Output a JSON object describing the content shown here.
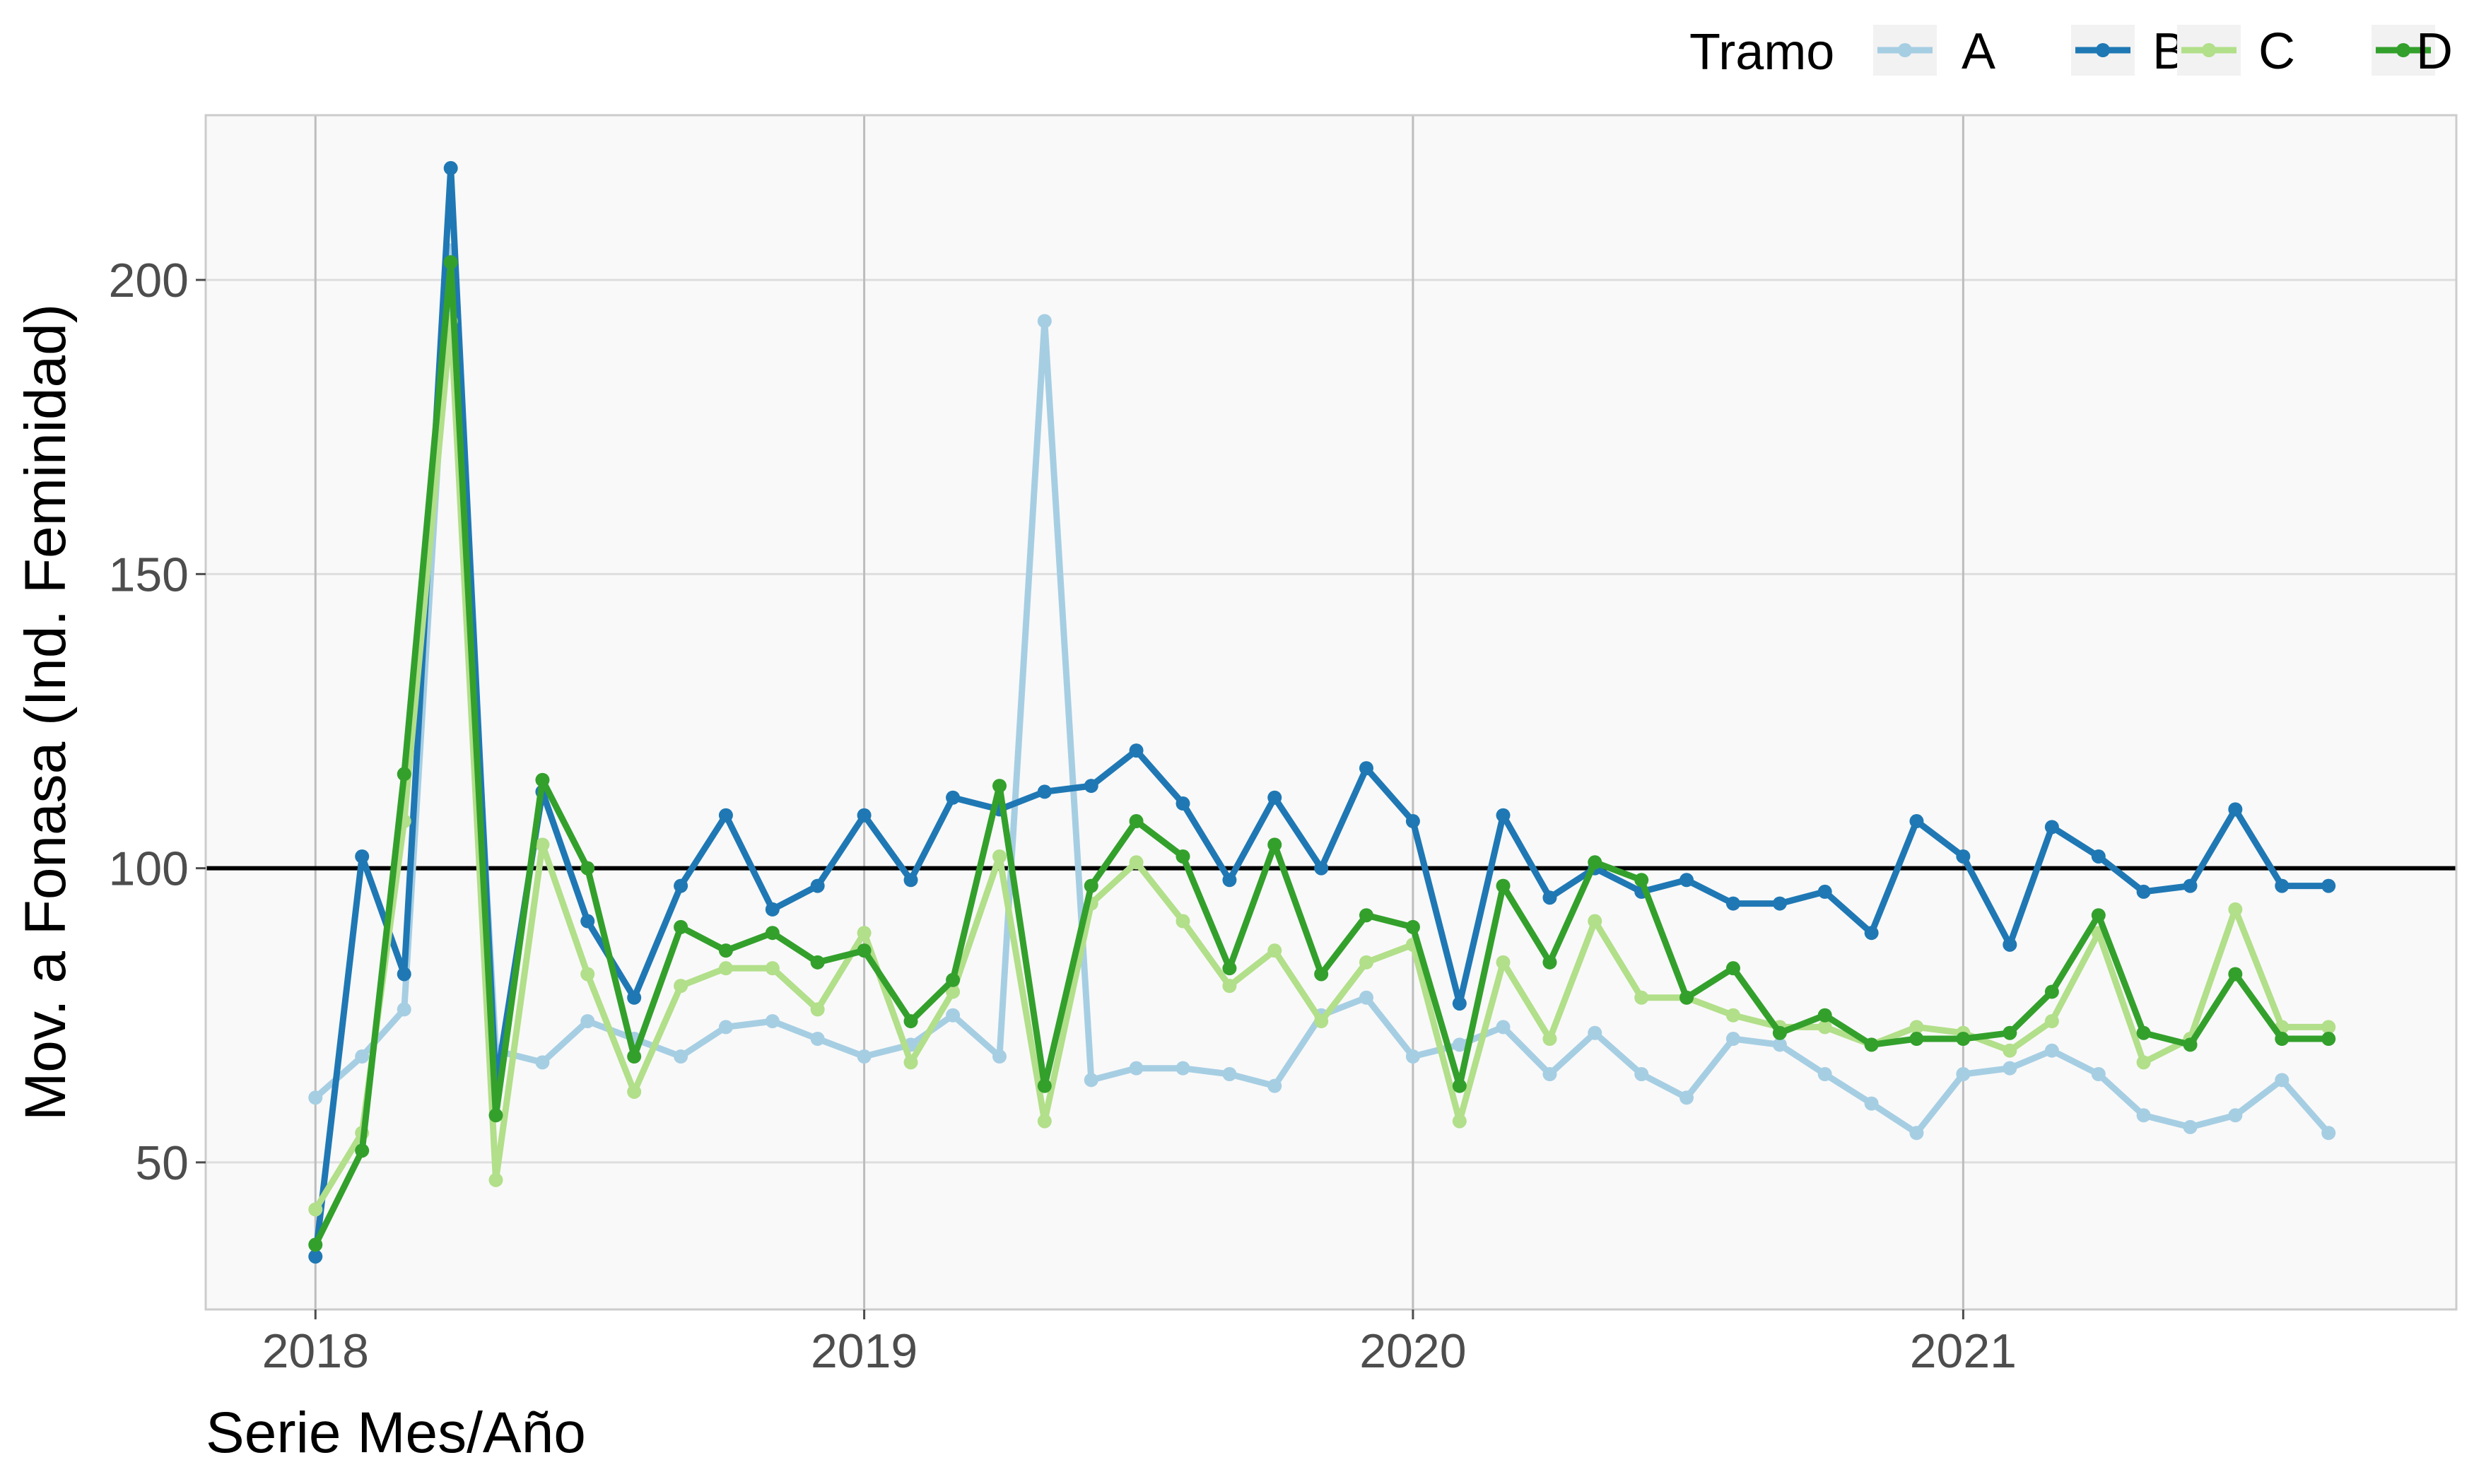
{
  "chart_data": {
    "type": "line",
    "xlabel": "Serie Mes/Año",
    "ylabel": "Mov. a Fonasa (Ind. Feminidad)",
    "xlim": [
      "2017-10-20",
      "2021-11-25"
    ],
    "ylim": [
      25,
      228
    ],
    "x_ticks": [
      {
        "date": "2018-01-01",
        "label": "2018"
      },
      {
        "date": "2019-01-01",
        "label": "2019"
      },
      {
        "date": "2020-01-01",
        "label": "2020"
      },
      {
        "date": "2021-01-01",
        "label": "2021"
      }
    ],
    "y_ticks": [
      50,
      100,
      150,
      200
    ],
    "reference_line": 100,
    "grid": true,
    "legend": {
      "title": "Tramo",
      "position": "top-right"
    },
    "x": [
      "2018-01",
      "2018-02",
      "2018-03",
      "2018-04",
      "2018-05",
      "2018-06",
      "2018-07",
      "2018-08",
      "2018-09",
      "2018-10",
      "2018-11",
      "2018-12",
      "2019-01",
      "2019-02",
      "2019-03",
      "2019-04",
      "2019-05",
      "2019-06",
      "2019-07",
      "2019-08",
      "2019-09",
      "2019-10",
      "2019-11",
      "2019-12",
      "2020-01",
      "2020-02",
      "2020-03",
      "2020-04",
      "2020-05",
      "2020-06",
      "2020-07",
      "2020-08",
      "2020-09",
      "2020-10",
      "2020-11",
      "2020-12",
      "2021-01",
      "2021-02",
      "2021-03",
      "2021-04",
      "2021-05",
      "2021-06",
      "2021-07",
      "2021-08",
      "2021-09"
    ],
    "series": [
      {
        "name": "A",
        "color": "#a6cee3",
        "values": [
          61,
          68,
          76,
          205,
          69,
          67,
          74,
          71,
          68,
          73,
          74,
          71,
          68,
          70,
          75,
          68,
          193,
          64,
          66,
          66,
          65,
          63,
          75,
          78,
          68,
          70,
          73,
          65,
          72,
          65,
          61,
          71,
          70,
          65,
          60,
          55,
          65,
          66,
          69,
          65,
          58,
          56,
          58,
          64,
          55
        ]
      },
      {
        "name": "B",
        "color": "#1f78b4",
        "values": [
          34,
          102,
          82,
          219,
          63,
          113,
          91,
          78,
          97,
          109,
          93,
          97,
          109,
          98,
          112,
          110,
          113,
          114,
          120,
          111,
          98,
          112,
          100,
          117,
          108,
          77,
          109,
          95,
          100,
          96,
          98,
          94,
          94,
          96,
          89,
          108,
          102,
          87,
          107,
          102,
          96,
          97,
          110,
          97,
          97
        ]
      },
      {
        "name": "C",
        "color": "#b2df8a",
        "values": [
          42,
          55,
          108,
          193,
          47,
          104,
          82,
          62,
          80,
          83,
          83,
          76,
          89,
          67,
          79,
          102,
          57,
          94,
          101,
          91,
          80,
          86,
          74,
          84,
          87,
          57,
          84,
          71,
          91,
          78,
          78,
          75,
          73,
          73,
          70,
          73,
          72,
          69,
          74,
          89,
          67,
          71,
          93,
          73,
          73
        ]
      },
      {
        "name": "D",
        "color": "#33a02c",
        "values": [
          36,
          52,
          116,
          203,
          58,
          115,
          100,
          68,
          90,
          86,
          89,
          84,
          86,
          74,
          81,
          114,
          63,
          97,
          108,
          102,
          83,
          104,
          82,
          92,
          90,
          63,
          97,
          84,
          101,
          98,
          78,
          83,
          72,
          75,
          70,
          71,
          71,
          72,
          79,
          92,
          72,
          70,
          82,
          71,
          71
        ]
      }
    ]
  }
}
